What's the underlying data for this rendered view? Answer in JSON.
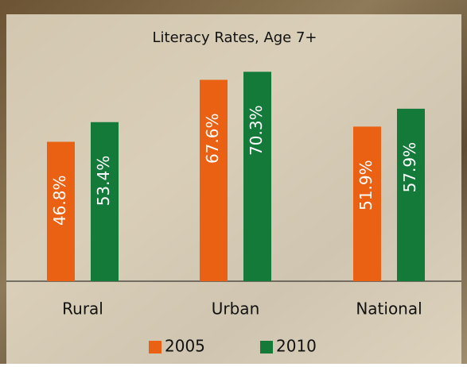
{
  "chart_data": {
    "type": "bar",
    "title": "Literacy Rates, Age 7+",
    "categories": [
      "Rural",
      "Urban",
      "National"
    ],
    "series": [
      {
        "name": "2005",
        "color": "#ea6113",
        "values": [
          46.8,
          67.6,
          51.9
        ],
        "value_labels": [
          "46.8%",
          "67.6%",
          "51.9%"
        ]
      },
      {
        "name": "2010",
        "color": "#137a3a",
        "values": [
          53.4,
          70.3,
          57.9
        ],
        "value_labels": [
          "53.4%",
          "70.3%",
          "57.9%"
        ]
      }
    ]
  }
}
